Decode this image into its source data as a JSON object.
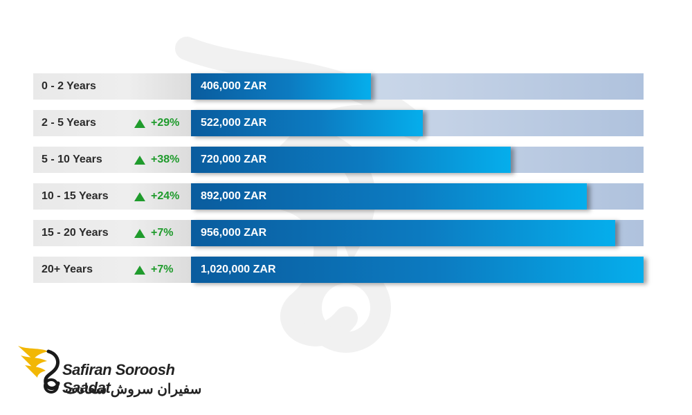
{
  "chart_data": {
    "type": "bar",
    "orientation": "horizontal",
    "currency": "ZAR",
    "categories": [
      "0 - 2 Years",
      "2 - 5 Years",
      "5 - 10 Years",
      "10 - 15 Years",
      "15 - 20 Years",
      "20+ Years"
    ],
    "values": [
      406000,
      522000,
      720000,
      892000,
      956000,
      1020000
    ],
    "value_labels": [
      "406,000 ZAR",
      "522,000 ZAR",
      "720,000 ZAR",
      "892,000 ZAR",
      "956,000 ZAR",
      "1,020,000 ZAR"
    ],
    "changes": [
      "",
      "+29%",
      "+38%",
      "+24%",
      "+7%",
      "+7%"
    ],
    "xlim": [
      0,
      1020000
    ]
  },
  "logo": {
    "brand_en": "Safiran Soroosh Saadat",
    "brand_fa": "سفیران سروش سعادت"
  },
  "colors": {
    "bar_dark": "#0a5c9e",
    "bar_light": "#05aeec",
    "track": "#c4d2e6",
    "change_up": "#1f9b2c",
    "logo_gold": "#f2b705"
  }
}
